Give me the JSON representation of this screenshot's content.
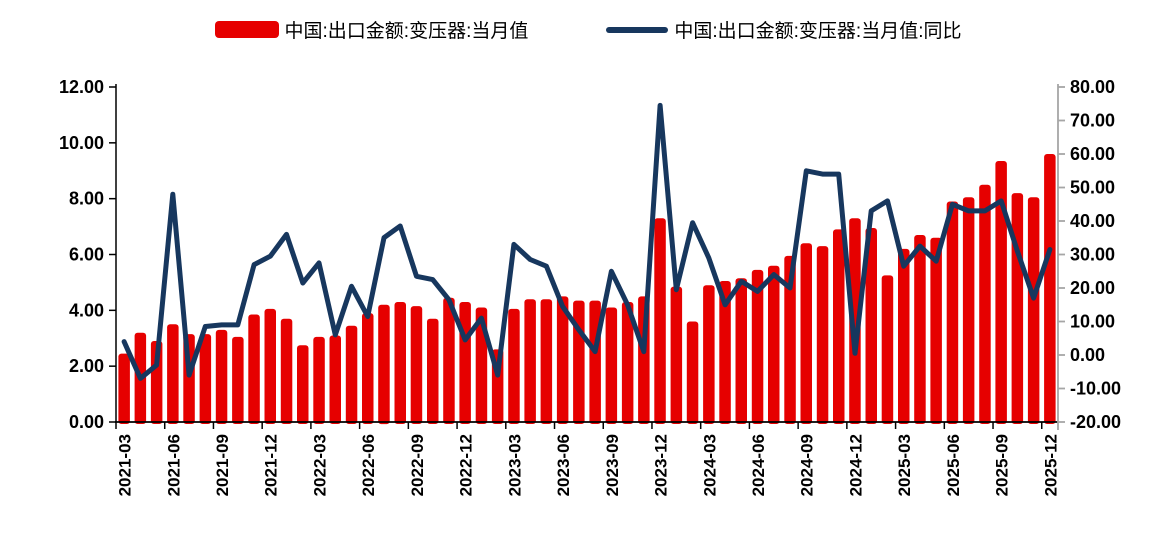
{
  "legend": [
    {
      "label": "中国:出口金额:变压器:当月值",
      "type": "bar",
      "color": "#e60000"
    },
    {
      "label": "中国:出口金额:变压器:当月值:同比",
      "type": "line",
      "color": "#17375e"
    }
  ],
  "colors": {
    "bar": "#e60000",
    "line": "#17375e",
    "axis": "#000000",
    "right_axis": "#a6a6a6",
    "background": "#ffffff"
  },
  "chart_data": {
    "type": "bar+line",
    "title": "",
    "xlabel": "",
    "ylabel_left": "",
    "ylabel_right": "",
    "grid": false,
    "legend_position": "top",
    "categories": [
      "2021-03",
      "2021-04",
      "2021-05",
      "2021-06",
      "2021-07",
      "2021-08",
      "2021-09",
      "2021-10",
      "2021-11",
      "2021-12",
      "2022-01",
      "2022-02",
      "2022-03",
      "2022-04",
      "2022-05",
      "2022-06",
      "2022-07",
      "2022-08",
      "2022-09",
      "2022-10",
      "2022-11",
      "2022-12",
      "2023-01",
      "2023-02",
      "2023-03",
      "2023-04",
      "2023-05",
      "2023-06",
      "2023-07",
      "2023-08",
      "2023-09",
      "2023-10",
      "2023-11",
      "2023-12",
      "2024-01",
      "2024-02",
      "2024-03",
      "2024-04",
      "2024-05",
      "2024-06",
      "2024-07",
      "2024-08",
      "2024-09",
      "2024-10",
      "2024-11",
      "2024-12",
      "2025-01",
      "2025-02",
      "2025-03",
      "2025-04",
      "2025-05",
      "2025-06",
      "2025-07",
      "2025-08",
      "2025-09",
      "2025-10",
      "2025-11",
      "2025-12"
    ],
    "series": [
      {
        "name": "中国:出口金额:变压器:当月值",
        "type": "bar",
        "axis": "left",
        "color": "#e60000",
        "values": [
          2.45,
          3.2,
          2.9,
          3.5,
          3.15,
          3.15,
          3.3,
          3.05,
          3.85,
          4.05,
          3.7,
          2.75,
          3.05,
          3.1,
          3.45,
          3.9,
          4.2,
          4.3,
          4.15,
          3.7,
          4.45,
          4.3,
          4.1,
          2.6,
          4.05,
          4.4,
          4.4,
          4.5,
          4.35,
          4.35,
          4.1,
          4.3,
          4.5,
          7.3,
          4.85,
          3.6,
          4.9,
          5.05,
          5.15,
          5.45,
          5.6,
          5.95,
          6.4,
          6.3,
          6.9,
          7.3,
          6.95,
          5.25,
          6.2,
          6.7,
          6.6,
          7.9,
          8.05,
          8.5,
          9.35,
          8.2,
          8.05,
          9.6
        ]
      },
      {
        "name": "中国:出口金额:变压器:当月值:同比",
        "type": "line",
        "axis": "right",
        "color": "#17375e",
        "values": [
          4,
          -7,
          -3,
          48,
          -6,
          8.5,
          9,
          9,
          27,
          29.5,
          36,
          21.5,
          27.5,
          6,
          20.5,
          11.5,
          35,
          38.5,
          23.5,
          22.5,
          16.5,
          4.5,
          11,
          -6,
          33,
          28.5,
          26.5,
          14.5,
          7.5,
          1,
          25,
          15,
          1,
          74.5,
          19.5,
          39.5,
          29,
          15,
          22,
          19,
          24,
          20,
          55,
          54,
          54,
          0.5,
          43,
          46,
          26.5,
          32.5,
          28,
          45,
          43,
          43,
          46,
          31,
          17,
          31.5
        ]
      }
    ],
    "x_tick_labels": [
      "2021-03",
      "2021-06",
      "2021-09",
      "2021-12",
      "2022-03",
      "2022-06",
      "2022-09",
      "2022-12",
      "2023-03",
      "2023-06",
      "2023-09",
      "2023-12",
      "2024-03",
      "2024-06",
      "2024-09",
      "2024-12",
      "2025-03",
      "2025-06",
      "2025-09",
      "2025-12"
    ],
    "x_tick_every": 3,
    "y_left": {
      "min": 0,
      "max": 12,
      "step": 2,
      "ticks": [
        "0.00",
        "2.00",
        "4.00",
        "6.00",
        "8.00",
        "10.00",
        "12.00"
      ]
    },
    "y_right": {
      "min": -20,
      "max": 80,
      "step": 10,
      "ticks": [
        "-20.00",
        "-10.00",
        "0.00",
        "10.00",
        "20.00",
        "30.00",
        "40.00",
        "50.00",
        "60.00",
        "70.00",
        "80.00"
      ]
    }
  }
}
